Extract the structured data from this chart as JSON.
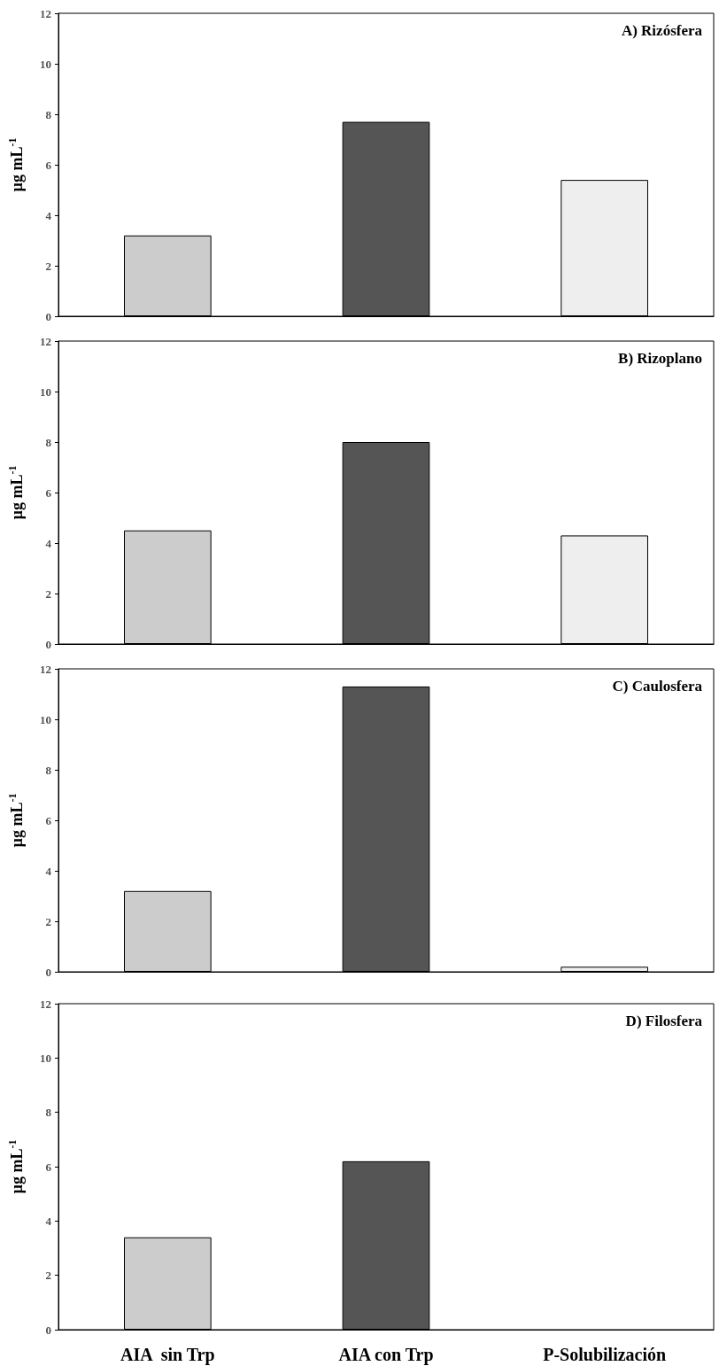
{
  "chart_data": [
    {
      "type": "bar",
      "title": "A) Rizósfera",
      "ylabel": "µg mL$^{-1}$",
      "categories": [
        null,
        null,
        null
      ],
      "values": [
        3.2,
        7.7,
        5.4
      ],
      "colors": [
        "#cccccc",
        "#555555",
        "#eeeeee"
      ],
      "ylim": [
        0,
        12
      ],
      "yticks": [
        0,
        2,
        4,
        6,
        8,
        10,
        12
      ],
      "grid": false,
      "tick_labels": "y"
    },
    {
      "type": "bar",
      "title": "B) Rizoplano",
      "ylabel": "µg mL$^{-1}$",
      "categories": [
        null,
        null,
        null
      ],
      "values": [
        4.5,
        8.0,
        4.3
      ],
      "colors": [
        "#cccccc",
        "#555555",
        "#eeeeee"
      ],
      "ylim": [
        0,
        12
      ],
      "yticks": [
        0,
        2,
        4,
        6,
        8,
        10,
        12
      ],
      "grid": false,
      "tick_labels": "y"
    },
    {
      "type": "bar",
      "title": "C) Caulosfera",
      "ylabel": "µg mL$^{-1}$",
      "categories": [
        null,
        null,
        null
      ],
      "values": [
        3.2,
        11.3,
        0.2
      ],
      "colors": [
        "#cccccc",
        "#555555",
        "#eeeeee"
      ],
      "ylim": [
        0,
        12
      ],
      "yticks": [
        0,
        2,
        4,
        6,
        8,
        10,
        12
      ],
      "grid": false,
      "tick_labels": "y"
    },
    {
      "type": "bar",
      "title": "D) Filosfera",
      "ylabel": "µg mL$^{-1}$",
      "categories": [
        "AIA  sin Trp",
        "AIA con Trp",
        "P-Solubilización"
      ],
      "values": [
        3.4,
        6.2,
        null
      ],
      "colors": [
        "#cccccc",
        "#555555",
        "#eeeeee"
      ],
      "ylim": [
        0,
        12
      ],
      "yticks": [
        0,
        2,
        4,
        6,
        8,
        10,
        12
      ],
      "grid": false
    }
  ]
}
